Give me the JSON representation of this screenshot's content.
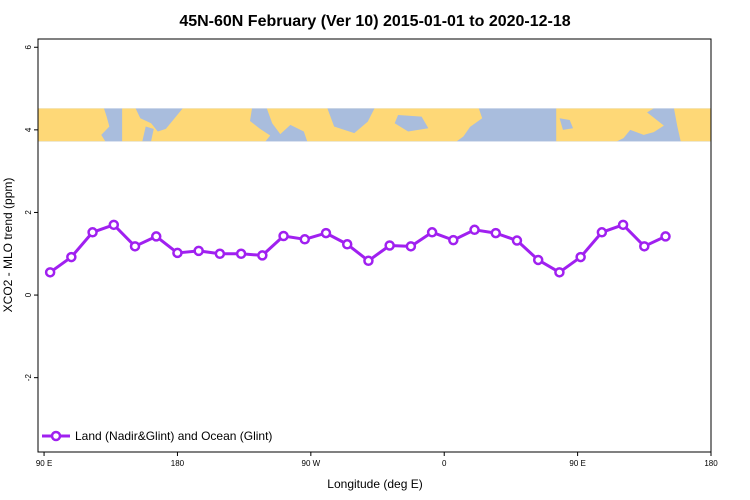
{
  "chart_data": {
    "type": "line",
    "title": "45N-60N February (Ver 10)   2015-01-01 to 2020-12-18",
    "xlabel": "Longitude (deg E)",
    "ylabel": "XCO2 - MLO trend (ppm)",
    "xlim": [
      87,
      420
    ],
    "ylim": [
      -3.8,
      6.2
    ],
    "x_ticks": [
      {
        "value": 90,
        "label": "90 E"
      },
      {
        "value": 156,
        "label": "180"
      },
      {
        "value": 222,
        "label": "90 W"
      },
      {
        "value": 288,
        "label": "0"
      },
      {
        "value": 354,
        "label": "90 E"
      },
      {
        "value": 420,
        "label": "180"
      }
    ],
    "y_ticks": [
      {
        "value": -2,
        "label": "-2"
      },
      {
        "value": 0,
        "label": "0"
      },
      {
        "value": 2,
        "label": "2"
      },
      {
        "value": 4,
        "label": "4"
      },
      {
        "value": 6,
        "label": "6"
      }
    ],
    "map_band": {
      "y_range": [
        3.72,
        4.52
      ],
      "ocean_color": "#a9bddd",
      "land_color": "#fed877"
    },
    "legend_position": "bottom-left",
    "series": [
      {
        "name": "Land (Nadir&Glint) and Ocean (Glint)",
        "color": "#a020f0",
        "x": [
          93,
          103.5,
          114,
          124.5,
          135,
          145.5,
          156,
          166.5,
          177,
          187.5,
          198,
          208.5,
          219,
          229.5,
          240,
          250.5,
          261,
          271.5,
          282,
          292.5,
          303,
          313.5,
          324,
          334.5,
          345,
          355.5,
          366,
          376.5,
          387,
          397.5,
          408,
          418.5
        ],
        "values": [
          0.55,
          0.92,
          1.52,
          1.7,
          1.18,
          1.42,
          1.02,
          1.07,
          1.0,
          1.0,
          0.96,
          1.43,
          1.35,
          1.5,
          1.23,
          0.83,
          1.2,
          1.18,
          1.52,
          1.33,
          1.58,
          1.5,
          1.32,
          0.85,
          0.55,
          0.92,
          1.52,
          1.7,
          1.18,
          1.42,
          null,
          null
        ]
      }
    ]
  }
}
